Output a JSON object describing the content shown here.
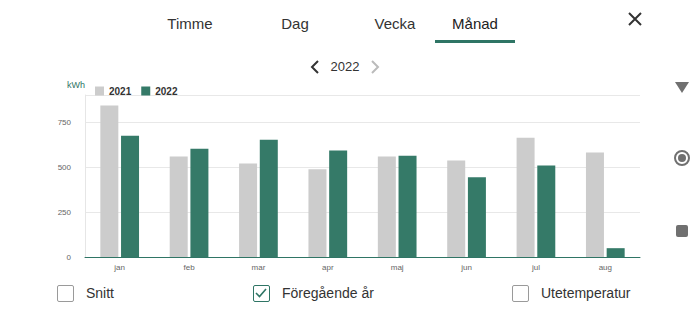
{
  "tabs": [
    "Timme",
    "Dag",
    "Vecka",
    "Månad"
  ],
  "selected_tab": "Månad",
  "year": "2022",
  "checkboxes": [
    {
      "label": "Snitt",
      "checked": false
    },
    {
      "label": "Föregående år",
      "checked": true
    },
    {
      "label": "Utetemperatur",
      "checked": false
    }
  ],
  "chart_data": {
    "type": "bar",
    "y_label": "kWh",
    "categories": [
      "jan",
      "feb",
      "mar",
      "apr",
      "maj",
      "jun",
      "jul",
      "aug"
    ],
    "series": [
      {
        "name": "2021",
        "color": "#cccccc",
        "values": [
          842,
          558,
          520,
          487,
          558,
          536,
          662,
          580
        ]
      },
      {
        "name": "2022",
        "color": "#357a68",
        "values": [
          673,
          602,
          651,
          591,
          563,
          443,
          509,
          49
        ]
      }
    ],
    "ylim": [
      0,
      900
    ],
    "yticks": [
      0,
      250,
      500,
      750
    ],
    "grid": true,
    "legend": "top left"
  }
}
